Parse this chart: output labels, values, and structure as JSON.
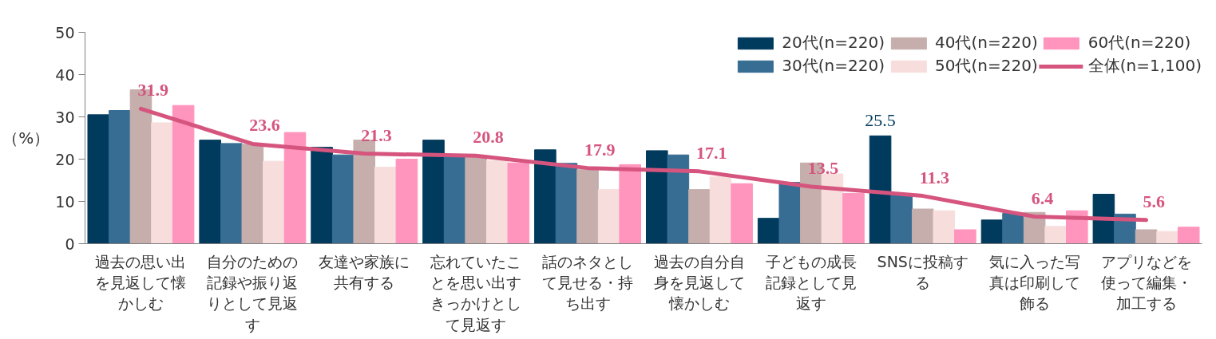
{
  "chart_data": {
    "type": "bar",
    "ylabel": "（%）",
    "categories": [
      "過去の思い出を見返して懐かしむ",
      "自分のための記録や振り返りとして見返す",
      "友達や家族に共有する",
      "忘れていたことを思い出すきっかけとして見返す",
      "話のネタとして見せる・持ち出す",
      "過去の自分自身を見返して懐かしむ",
      "子どもの成長記録として見返す",
      "SNSに投稿する",
      "気に入った写真は印刷して飾る",
      "アプリなどを使って編集・加工する"
    ],
    "series": [
      {
        "name": "20代(n=220)",
        "color": "#003a5d",
        "values": [
          30.5,
          24.5,
          22.8,
          24.5,
          22.2,
          22.0,
          6.0,
          25.5,
          5.6,
          11.7
        ],
        "value_labels": [
          null,
          null,
          null,
          null,
          null,
          null,
          null,
          "25.5",
          null,
          null
        ]
      },
      {
        "name": "30代(n=220)",
        "color": "#376d93",
        "values": [
          31.5,
          23.7,
          21.0,
          21.0,
          19.0,
          21.0,
          14.5,
          11.5,
          7.2,
          7.0
        ]
      },
      {
        "name": "40代(n=220)",
        "color": "#c5aeac",
        "values": [
          36.4,
          23.5,
          24.5,
          20.4,
          17.5,
          12.8,
          19.1,
          8.2,
          7.4,
          3.3
        ]
      },
      {
        "name": "50代(n=220)",
        "color": "#f7dedd",
        "values": [
          28.6,
          19.5,
          18.1,
          19.6,
          12.8,
          15.8,
          16.5,
          7.8,
          4.1,
          2.9
        ]
      },
      {
        "name": "60代(n=220)",
        "color": "#ff94bd",
        "values": [
          32.7,
          26.3,
          20.0,
          19.1,
          18.7,
          14.2,
          11.9,
          3.3,
          7.8,
          3.9
        ]
      },
      {
        "name": "全体(n=1,100)",
        "type": "line",
        "color": "#d6557e",
        "values": [
          31.9,
          23.6,
          21.3,
          20.8,
          17.9,
          17.1,
          13.5,
          11.3,
          6.4,
          5.6
        ],
        "data_labels": true
      }
    ],
    "ylim": [
      0,
      50
    ],
    "yticks": [
      0,
      10,
      20,
      30,
      40,
      50
    ],
    "grid": false,
    "legend": "top right"
  }
}
